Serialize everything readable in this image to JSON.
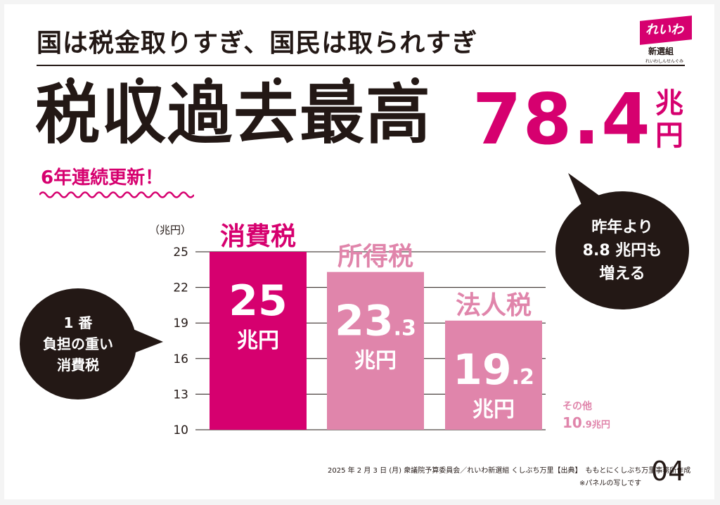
{
  "subtitle": "国は税金取りすぎ、国民は取られすぎ",
  "headline": "税収過去最高",
  "total_value": "78.4",
  "total_unit": "兆円",
  "streak": "6年連続更新！",
  "logo": {
    "text": "れいわ",
    "sub": "新選組",
    "sub2": "れいわしんせんぐみ"
  },
  "bubble_right": "昨年より\n8.8 兆円も\n増える",
  "bubble_left": "1 番\n負担の重い\n消費税",
  "footer": "2025 年 2 月 3 日 (月) 衆議院予算委員会／れいわ新選組 くしぶち万里【出典】　ももとにくしぶち万里事務所作成",
  "footer_note": "※パネルの写しです",
  "page_number": "04",
  "colors": {
    "accent": "#d6006f",
    "secondary_bar": "#e085ab",
    "dark": "#231815"
  },
  "chart_data": {
    "type": "bar",
    "categories": [
      "消費税",
      "所得税",
      "法人税"
    ],
    "values": [
      25,
      23.3,
      19.2
    ],
    "value_labels": [
      {
        "int": "25",
        "dec": ""
      },
      {
        "int": "23",
        "dec": ".3"
      },
      {
        "int": "19",
        "dec": ".2"
      }
    ],
    "bar_colors": [
      "#d6006f",
      "#e085ab",
      "#e085ab"
    ],
    "unit_label": "兆円",
    "ylabel": "（兆円）",
    "ylim": [
      10,
      25
    ],
    "yticks": [
      10,
      13,
      16,
      19,
      22,
      25
    ],
    "grid": true,
    "other": {
      "label": "その他",
      "value_int": "10",
      "value_dec": ".9",
      "unit": "兆円"
    }
  }
}
